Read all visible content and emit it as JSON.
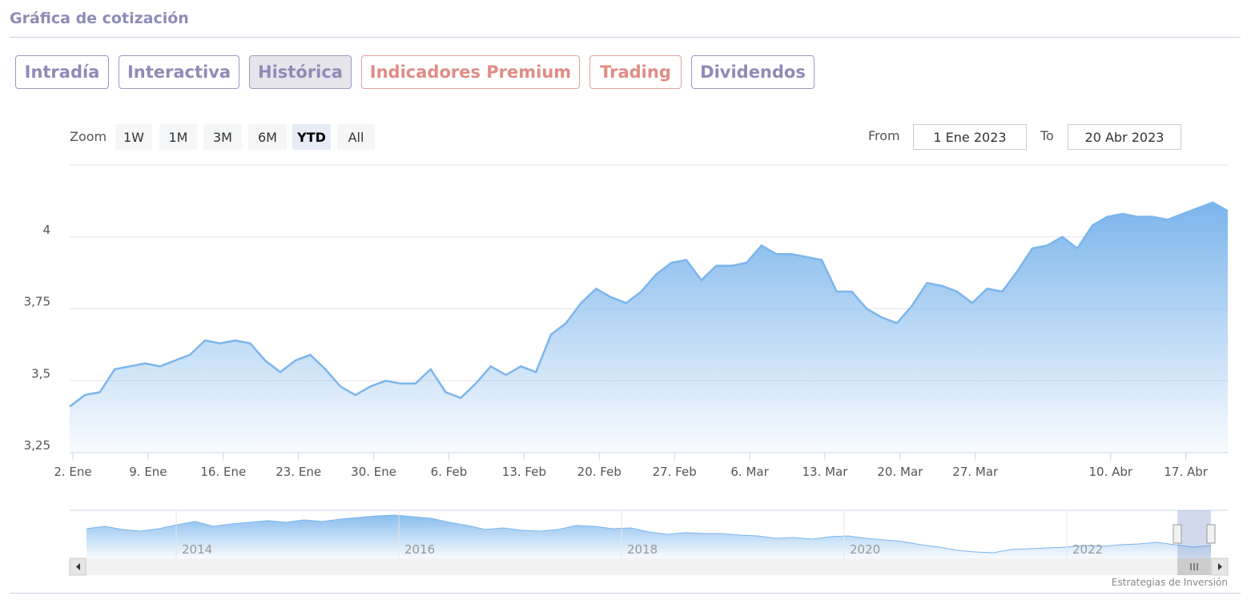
{
  "header": {
    "title": "Gráfica de cotización"
  },
  "tabs": [
    {
      "label": "Intradía",
      "active": false,
      "color": "#8f8bb8"
    },
    {
      "label": "Interactiva",
      "active": false,
      "color": "#8f8bb8"
    },
    {
      "label": "Histórica",
      "active": true,
      "color": "#8f8bb8"
    },
    {
      "label": "Indicadores Premium",
      "active": false,
      "color": "#e08c86"
    },
    {
      "label": "Trading",
      "active": false,
      "color": "#e08c86"
    },
    {
      "label": "Dividendos",
      "active": false,
      "color": "#8f8bb8"
    }
  ],
  "range_selector": {
    "zoom_label": "Zoom",
    "buttons": [
      {
        "label": "1W"
      },
      {
        "label": "1M"
      },
      {
        "label": "3M"
      },
      {
        "label": "6M"
      },
      {
        "label": "YTD",
        "selected": true
      },
      {
        "label": "All"
      }
    ],
    "from_label": "From",
    "from_value": "1 Ene 2023",
    "to_label": "To",
    "to_value": "20 Abr 2023"
  },
  "credit": "Estrategias de Inversión",
  "chart_data": {
    "type": "area",
    "title": "",
    "xlabel": "",
    "ylabel": "",
    "ylim": [
      3.25,
      4.25
    ],
    "y_ticks": [
      "3,25",
      "3,5",
      "3,75",
      "4"
    ],
    "y_tick_values": [
      3.25,
      3.5,
      3.75,
      4
    ],
    "x_ticks": [
      {
        "label": "2. Ene",
        "date": "2023-01-02"
      },
      {
        "label": "9. Ene",
        "date": "2023-01-09"
      },
      {
        "label": "16. Ene",
        "date": "2023-01-16"
      },
      {
        "label": "23. Ene",
        "date": "2023-01-23"
      },
      {
        "label": "30. Ene",
        "date": "2023-01-30"
      },
      {
        "label": "6. Feb",
        "date": "2023-02-06"
      },
      {
        "label": "13. Feb",
        "date": "2023-02-13"
      },
      {
        "label": "20. Feb",
        "date": "2023-02-20"
      },
      {
        "label": "27. Feb",
        "date": "2023-02-27"
      },
      {
        "label": "6. Mar",
        "date": "2023-03-06"
      },
      {
        "label": "13. Mar",
        "date": "2023-03-13"
      },
      {
        "label": "20. Mar",
        "date": "2023-03-20"
      },
      {
        "label": "27. Mar",
        "date": "2023-03-27"
      },
      {
        "label": "10. Abr",
        "date": "2023-04-10"
      },
      {
        "label": "17. Abr",
        "date": "2023-04-17"
      }
    ],
    "grid": true,
    "color": "#7cb5ec",
    "series": [
      {
        "x": [
          "2023-01-02",
          "2023-01-03",
          "2023-01-04",
          "2023-01-05",
          "2023-01-06",
          "2023-01-09",
          "2023-01-10",
          "2023-01-11",
          "2023-01-12",
          "2023-01-13",
          "2023-01-16",
          "2023-01-17",
          "2023-01-18",
          "2023-01-19",
          "2023-01-20",
          "2023-01-23",
          "2023-01-24",
          "2023-01-25",
          "2023-01-26",
          "2023-01-27",
          "2023-01-30",
          "2023-01-31",
          "2023-02-01",
          "2023-02-02",
          "2023-02-03",
          "2023-02-06",
          "2023-02-07",
          "2023-02-08",
          "2023-02-09",
          "2023-02-10",
          "2023-02-13",
          "2023-02-14",
          "2023-02-15",
          "2023-02-16",
          "2023-02-17",
          "2023-02-20",
          "2023-02-21",
          "2023-02-22",
          "2023-02-23",
          "2023-02-24",
          "2023-02-27",
          "2023-02-28",
          "2023-03-01",
          "2023-03-02",
          "2023-03-03",
          "2023-03-06",
          "2023-03-07",
          "2023-03-08",
          "2023-03-09",
          "2023-03-10",
          "2023-03-13",
          "2023-03-14",
          "2023-03-15",
          "2023-03-16",
          "2023-03-17",
          "2023-03-20",
          "2023-03-21",
          "2023-03-22",
          "2023-03-23",
          "2023-03-24",
          "2023-03-27",
          "2023-03-28",
          "2023-03-29",
          "2023-03-30",
          "2023-03-31",
          "2023-04-03",
          "2023-04-04",
          "2023-04-05",
          "2023-04-06",
          "2023-04-10",
          "2023-04-11",
          "2023-04-12",
          "2023-04-13",
          "2023-04-14",
          "2023-04-17",
          "2023-04-18",
          "2023-04-19",
          "2023-04-20"
        ],
        "values": [
          3.41,
          3.45,
          3.46,
          3.54,
          3.55,
          3.56,
          3.55,
          3.57,
          3.59,
          3.64,
          3.63,
          3.64,
          3.63,
          3.57,
          3.53,
          3.57,
          3.59,
          3.54,
          3.48,
          3.45,
          3.48,
          3.5,
          3.49,
          3.49,
          3.54,
          3.46,
          3.44,
          3.49,
          3.55,
          3.52,
          3.55,
          3.53,
          3.66,
          3.7,
          3.77,
          3.82,
          3.79,
          3.77,
          3.81,
          3.87,
          3.91,
          3.92,
          3.85,
          3.9,
          3.9,
          3.91,
          3.97,
          3.94,
          3.94,
          3.93,
          3.92,
          3.81,
          3.81,
          3.75,
          3.72,
          3.7,
          3.76,
          3.84,
          3.83,
          3.81,
          3.77,
          3.82,
          3.81,
          3.88,
          3.96,
          3.97,
          4.0,
          3.96,
          4.04,
          4.07,
          4.08,
          4.07,
          4.07,
          4.06,
          4.08,
          4.1,
          4.12,
          4.09
        ]
      }
    ]
  },
  "navigator": {
    "x_labels": [
      "2014",
      "2016",
      "2018",
      "2020",
      "2022"
    ]
  }
}
